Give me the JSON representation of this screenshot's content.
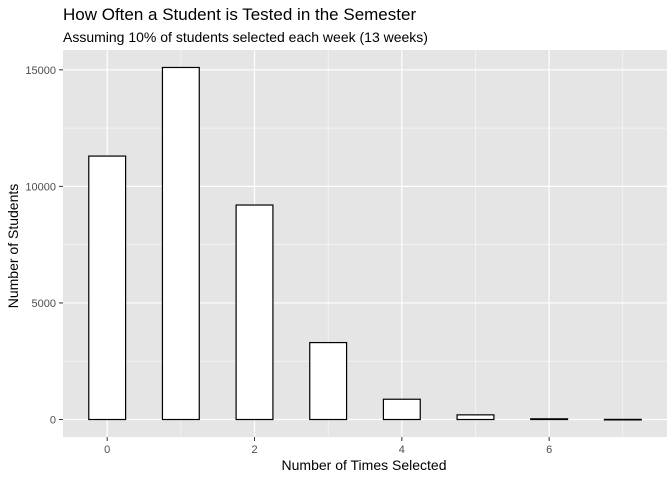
{
  "chart_data": {
    "type": "bar",
    "title": "How Often a Student is Tested in the Semester",
    "subtitle": "Assuming 10% of students selected each week (13 weeks)",
    "xlabel": "Number of Times Selected",
    "ylabel": "Number of Students",
    "x": [
      0,
      1,
      2,
      3,
      4,
      5,
      6,
      7
    ],
    "values": [
      11300,
      15100,
      9200,
      3300,
      870,
      200,
      30,
      5
    ],
    "x_ticks": [
      0,
      2,
      4,
      6
    ],
    "y_ticks": [
      0,
      5000,
      10000,
      15000
    ],
    "xlim": [
      -0.6,
      7.6
    ],
    "ylim": [
      -750,
      15850
    ],
    "grid": true,
    "colors": {
      "panel": "#e5e5e5",
      "grid_major": "#ffffff",
      "bar_fill": "#ffffff",
      "bar_outline": "#000000",
      "tick_text": "#4d4d4d"
    }
  }
}
